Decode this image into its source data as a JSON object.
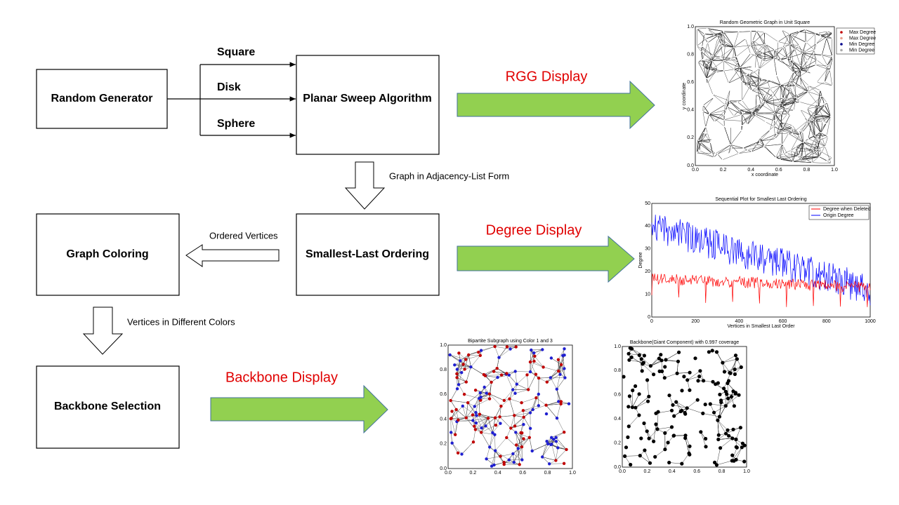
{
  "nodes": [
    {
      "label": "Random Generator"
    },
    {
      "label": "Planar Sweep Algorithm"
    },
    {
      "label": "Smallest-Last Ordering"
    },
    {
      "label": "Graph Coloring"
    },
    {
      "label": "Backbone Selection"
    }
  ],
  "edge_labels": [
    "Square",
    "Disk",
    "Sphere",
    "Graph in Adjacency-List Form",
    "Ordered Vertices",
    "Vertices in Different Colors"
  ],
  "displays": [
    "RGG Display",
    "Degree Display",
    "Backbone Display"
  ],
  "plots": {
    "rgg": {
      "title": "Random Geometric Graph in Unit Square",
      "x_label": "x coordinate",
      "y_label": "y coordinate",
      "x_ticks": [
        "0.0",
        "0.2",
        "0.4",
        "0.6",
        "0.8",
        "1.0"
      ],
      "y_ticks": [
        "0.0",
        "0.2",
        "0.4",
        "0.6",
        "0.8",
        "1.0"
      ],
      "legend": [
        "Max Degree",
        "Max Degree",
        "Min Degree",
        "Min Degree"
      ]
    },
    "degree": {
      "title": "Sequential Plot for Smallest Last Ordering",
      "x_label": "Vertices in Smallest Last Order",
      "y_label": "Degree",
      "x_ticks": [
        "0",
        "200",
        "400",
        "600",
        "800",
        "1000"
      ],
      "y_ticks": [
        "0",
        "10",
        "20",
        "30",
        "40",
        "50"
      ],
      "legend": [
        "Degree when Deleted",
        "Origin Degree"
      ]
    },
    "bipartite": {
      "title": "Bipartite Subgraph using Color 1 and 3",
      "x_ticks": [
        "0.0",
        "0.2",
        "0.4",
        "0.6",
        "0.8",
        "1.0"
      ],
      "y_ticks": [
        "0.0",
        "0.2",
        "0.4",
        "0.6",
        "0.8",
        "1.0"
      ]
    },
    "backbone": {
      "title": "Backbone(Giant Component) with 0.997 coverage",
      "x_ticks": [
        "0.0",
        "0.2",
        "0.4",
        "0.6",
        "0.8",
        "1.0"
      ],
      "y_ticks": [
        "0.0",
        "0.2",
        "0.4",
        "0.6",
        "0.8",
        "1.0"
      ]
    }
  }
}
